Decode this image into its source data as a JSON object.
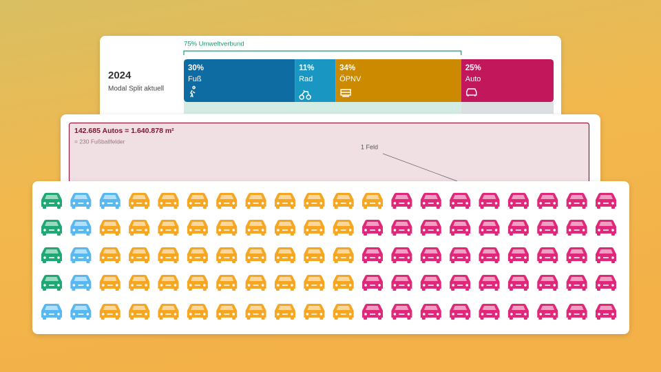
{
  "modal_split": {
    "year": "2024",
    "subtitle": "Modal Split aktuell",
    "bracket_label": "75% Umweltverbund",
    "segments": [
      {
        "share": 30,
        "share_label": "30%",
        "name": "Fuß",
        "color": "#0f6ca3"
      },
      {
        "share": 11,
        "share_label": "11%",
        "name": "Rad",
        "color": "#1a96c2"
      },
      {
        "share": 34,
        "share_label": "34%",
        "name": "ÖPNV",
        "color": "#cc8a00"
      },
      {
        "share": 25,
        "share_label": "25%",
        "name": "Auto",
        "color": "#c2185b"
      }
    ]
  },
  "area": {
    "title": "142.685 Autos = 1.640.878 m²",
    "subtitle": "= 230 Fußballfelder",
    "annotation": "1 Feld"
  },
  "icon_grid": {
    "rows": [
      [
        {
          "color": "#1fa874",
          "count": 1
        },
        {
          "color": "#58b8f0",
          "count": 2
        },
        {
          "color": "#f5a623",
          "count": 9
        },
        {
          "color": "#e0287a",
          "count": 8
        }
      ],
      [
        {
          "color": "#1fa874",
          "count": 1
        },
        {
          "color": "#58b8f0",
          "count": 1
        },
        {
          "color": "#f5a623",
          "count": 9
        },
        {
          "color": "#e0287a",
          "count": 9
        }
      ],
      [
        {
          "color": "#1fa874",
          "count": 1
        },
        {
          "color": "#58b8f0",
          "count": 1
        },
        {
          "color": "#f5a623",
          "count": 9
        },
        {
          "color": "#e0287a",
          "count": 9
        }
      ],
      [
        {
          "color": "#1fa874",
          "count": 1
        },
        {
          "color": "#58b8f0",
          "count": 1
        },
        {
          "color": "#f5a623",
          "count": 9
        },
        {
          "color": "#e0287a",
          "count": 9
        }
      ],
      [
        {
          "color": "#58b8f0",
          "count": 2
        },
        {
          "color": "#f5a623",
          "count": 9
        },
        {
          "color": "#e0287a",
          "count": 9
        }
      ]
    ]
  }
}
